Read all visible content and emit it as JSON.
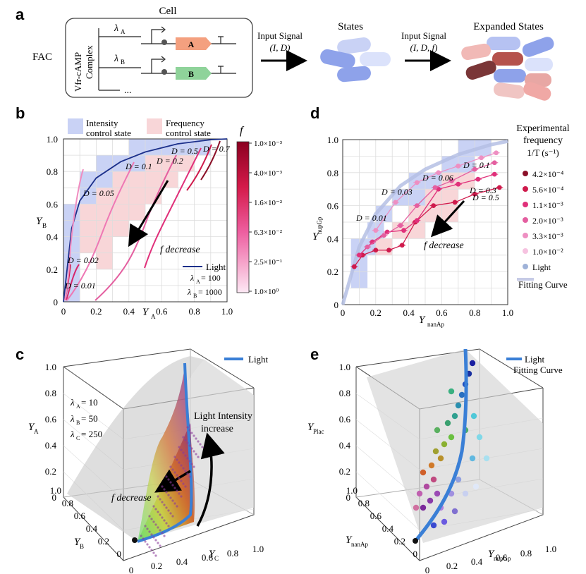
{
  "panel_labels": {
    "a": "a",
    "b": "b",
    "c": "c",
    "d": "d",
    "e": "e"
  },
  "panel_a": {
    "cell_title": "Cell",
    "fac_label": "FAC",
    "complex_line1": "Vfr-cAMP",
    "complex_line2": "Complex",
    "lambda_a": "λ",
    "lambda_a_sub": "A",
    "lambda_b": "λ",
    "lambda_b_sub": "B",
    "gene_a": "A",
    "gene_b": "B",
    "ellipsis": "...",
    "input_signal_1": "Input Signal",
    "input_args_1": "(I, D)",
    "states": "States",
    "input_signal_2": "Input Signal",
    "input_args_2": "(I, D, f)",
    "expanded_states": "Expanded States",
    "colors": {
      "gene_a": "#f4a07f",
      "gene_b": "#8fd39a",
      "state_blue": "#8ea2ea",
      "state_red": "#a8504a"
    }
  },
  "panel_b": {
    "legend_intensity": "Intensity",
    "legend_intensity_2": "control state",
    "legend_frequency": "Frequency",
    "legend_frequency_2": "control state",
    "xlabel": "Y",
    "xlabel_sub": "A",
    "ylabel": "Y",
    "ylabel_sub": "B",
    "colorbar_title": "f",
    "colorbar_ticks": [
      "1.0×10⁻³",
      "4.0×10⁻³",
      "1.6×10⁻²",
      "6.3×10⁻²",
      "2.5×10⁻¹",
      "1.0×10⁰"
    ],
    "d_labels": [
      "D = 0.01",
      "D = 0.02",
      "D = 0.05",
      "D = 0.1",
      "D = 0.2",
      "D = 0.5",
      "D = 0.7"
    ],
    "f_decrease": "f decrease",
    "light_label": "Light",
    "lambda_a_text": "λ",
    "lambda_a_sub": "A",
    "lambda_a_val": "= 100",
    "lambda_b_text": "λ",
    "lambda_b_sub": "B",
    "lambda_b_val": "= 1000",
    "ticks": [
      "0",
      "0.2",
      "0.4",
      "0.6",
      "0.8",
      "1.0"
    ]
  },
  "panel_c": {
    "legend_light": "Light",
    "lambda_a": "= 10",
    "lambda_b": "= 50",
    "lambda_c": "= 250",
    "sym_lambda": "λ",
    "sub_a": "A",
    "sub_b": "B",
    "sub_c": "C",
    "light_intensity_1": "Light Intensity",
    "light_intensity_2": "increase",
    "f_decrease": "f decrease",
    "ylabel_a": "Y",
    "xlabel_b": "Y",
    "xlabel_c": "Y",
    "z_ticks": [
      "0",
      "0.2",
      "0.4",
      "0.6",
      "0.8",
      "1.0"
    ],
    "b_ticks": [
      "0",
      "0.2",
      "0.4",
      "0.6",
      "0.8",
      "1.0"
    ],
    "c_ticks": [
      "0",
      "0.2",
      "0.4",
      "0.6",
      "0.8",
      "1.0"
    ]
  },
  "panel_d": {
    "legend_title_1": "Experimental",
    "legend_title_2": "frequency",
    "legend_title_3": "1/T (s⁻¹)",
    "legend_items": [
      {
        "label": "4.2×10⁻⁴",
        "color": "#8b1028"
      },
      {
        "label": "5.6×10⁻⁴",
        "color": "#cf1a4c"
      },
      {
        "label": "1.1×10⁻³",
        "color": "#e0307a"
      },
      {
        "label": "2.0×10⁻³",
        "color": "#e45fa0"
      },
      {
        "label": "3.3×10⁻³",
        "color": "#ee8fc2"
      },
      {
        "label": "1.0×10⁻²",
        "color": "#f6c2e0"
      },
      {
        "label": "Light",
        "color": "#9fb2d8"
      }
    ],
    "fitting_curve": "Fitting Curve",
    "d_labels": [
      "D = 0.01",
      "D = 0.03",
      "D = 0.06",
      "D = 0.1",
      "D = 0.3",
      "D = 0.5"
    ],
    "f_decrease": "f decrease",
    "xlabel": "Y",
    "xlabel_sub": "nanAp",
    "ylabel": "Y",
    "ylabel_sub": "nupGp",
    "ticks": [
      "0",
      "0.2",
      "0.4",
      "0.6",
      "0.8",
      "1.0"
    ]
  },
  "panel_e": {
    "legend_light": "Light",
    "legend_fit": "Fitting Curve",
    "zlabel": "Y",
    "zlabel_sub": "Plac",
    "xlabel": "Y",
    "xlabel_sub": "nanAp",
    "ylabel": "Y",
    "ylabel_sub": "nupGp",
    "z_ticks": [
      "0",
      "0.2",
      "0.4",
      "0.6",
      "0.8",
      "1.0"
    ],
    "x_ticks": [
      "0",
      "0.2",
      "0.4",
      "0.6",
      "0.8",
      "1.0"
    ],
    "y_ticks": [
      "0",
      "0.2",
      "0.4",
      "0.6",
      "0.8",
      "1.0"
    ]
  },
  "chart_data": [
    {
      "type": "line",
      "title": "b",
      "xlabel": "Y_A",
      "ylabel": "Y_B",
      "xlim": [
        0,
        1
      ],
      "ylim": [
        0,
        1
      ],
      "series": [
        {
          "name": "Light",
          "x": [
            0.0,
            0.05,
            0.1,
            0.2,
            0.35,
            0.5,
            0.7,
            0.9,
            1.0
          ],
          "y": [
            0.0,
            0.45,
            0.62,
            0.76,
            0.86,
            0.92,
            0.97,
            0.995,
            1.0
          ]
        }
      ]
    },
    {
      "type": "scatter",
      "title": "d",
      "xlabel": "Y_nanAp",
      "ylabel": "Y_nupGp",
      "xlim": [
        0,
        1
      ],
      "ylim": [
        0,
        1
      ],
      "series": [
        {
          "name": "Fitting Curve",
          "x": [
            0.0,
            0.1,
            0.2,
            0.35,
            0.5,
            0.7,
            0.9,
            1.0
          ],
          "y": [
            0.0,
            0.35,
            0.55,
            0.72,
            0.82,
            0.91,
            0.97,
            0.99
          ]
        }
      ]
    }
  ]
}
